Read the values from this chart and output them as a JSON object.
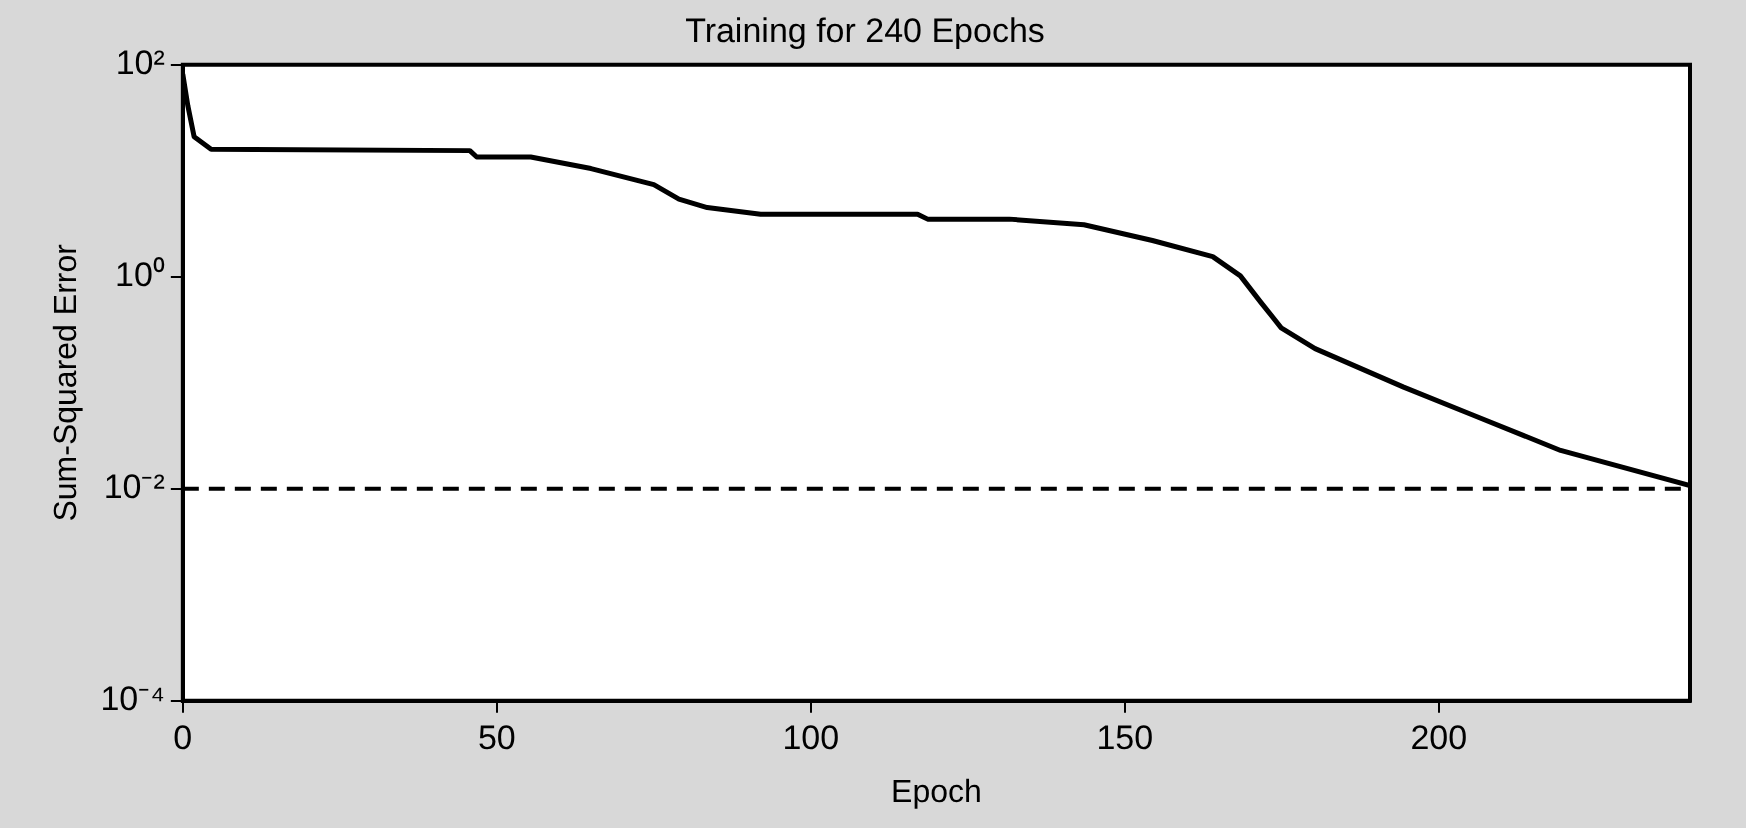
{
  "chart_data": {
    "type": "line",
    "title": "Training for 240 Epochs",
    "xlabel": "Epoch",
    "ylabel": "Sum-Squared Error",
    "x": [
      0,
      0.8,
      1.8,
      4.5,
      45.7,
      46.8,
      55.4,
      65,
      75,
      79,
      83.5,
      92,
      117,
      118.6,
      131.6,
      143.5,
      154.4,
      164,
      168.4,
      171.6,
      174.9,
      180.3,
      194.4,
      205.3,
      219.4,
      240
    ],
    "series": [
      {
        "color": "#000000",
        "values": [
          81,
          41,
          21,
          16,
          15.5,
          13.5,
          13.5,
          10.5,
          7.4,
          5.4,
          4.5,
          3.9,
          3.9,
          3.5,
          3.5,
          3.1,
          2.2,
          1.55,
          1.02,
          0.58,
          0.33,
          0.21,
          0.091,
          0.05,
          0.023,
          0.0107
        ]
      }
    ],
    "xlim": [
      0,
      240
    ],
    "xticks": [
      0,
      50,
      100,
      150,
      200
    ],
    "ylim": [
      0.0001,
      100
    ],
    "yticks": [
      {
        "value": 0.0001,
        "label": "10⁻⁴"
      },
      {
        "value": 0.01,
        "label": "10⁻²"
      },
      {
        "value": 1,
        "label": "10⁰"
      },
      {
        "value": 100,
        "label": "10²"
      }
    ],
    "log": "y",
    "grid": false,
    "legend": false,
    "marker": "none",
    "line_style": "solid",
    "ref_lines": [
      {
        "axis": "y",
        "value": 0.01,
        "color": "#000000",
        "line_style": "dashed"
      }
    ]
  }
}
